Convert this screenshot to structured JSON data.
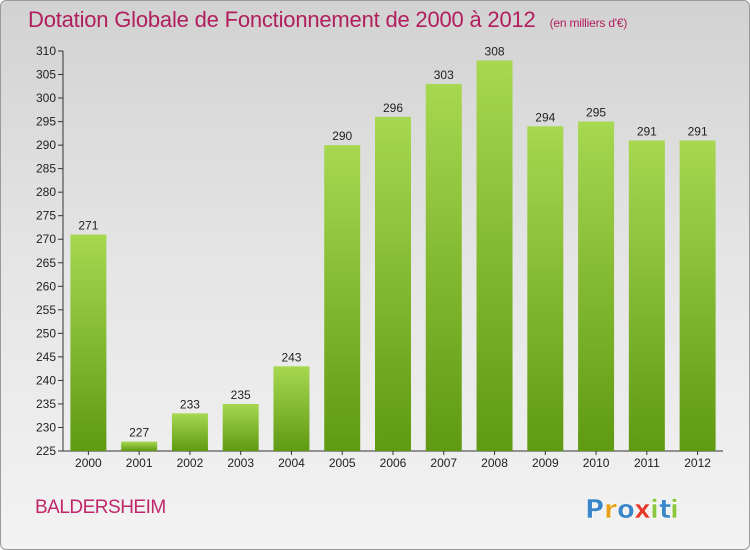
{
  "header": {
    "title": "Dotation Globale de Fonctionnement de 2000 à 2012",
    "unit": "(en milliers d'€)"
  },
  "footer": {
    "commune": "BALDERSHEIM",
    "logo_text": "Proxiti",
    "logo_letters": [
      {
        "ch": "P",
        "color": "#3a86c8"
      },
      {
        "ch": "r",
        "color": "#e7a017"
      },
      {
        "ch": "o",
        "color": "#3a86c8"
      },
      {
        "ch": "x",
        "color": "#e53a2b"
      },
      {
        "ch": "i",
        "color": "#8cc63f"
      },
      {
        "ch": "t",
        "color": "#3a86c8"
      },
      {
        "ch": "i",
        "color": "#8cc63f"
      }
    ]
  },
  "colors": {
    "bar_top": "#a6d850",
    "bar_bottom": "#5f9a12",
    "title": "#b01e5e"
  },
  "chart_data": {
    "type": "bar",
    "title": "Dotation Globale de Fonctionnement de 2000 à 2012",
    "categories": [
      "2000",
      "2001",
      "2002",
      "2003",
      "2004",
      "2005",
      "2006",
      "2007",
      "2008",
      "2009",
      "2010",
      "2011",
      "2012"
    ],
    "values": [
      271,
      227,
      233,
      235,
      243,
      290,
      296,
      303,
      308,
      294,
      295,
      291,
      291
    ],
    "ylim": [
      225,
      310
    ],
    "yticks": [
      225,
      230,
      235,
      240,
      245,
      250,
      255,
      260,
      265,
      270,
      275,
      280,
      285,
      290,
      295,
      300,
      305,
      310
    ],
    "xlabel": "",
    "ylabel": "",
    "grid": false
  }
}
